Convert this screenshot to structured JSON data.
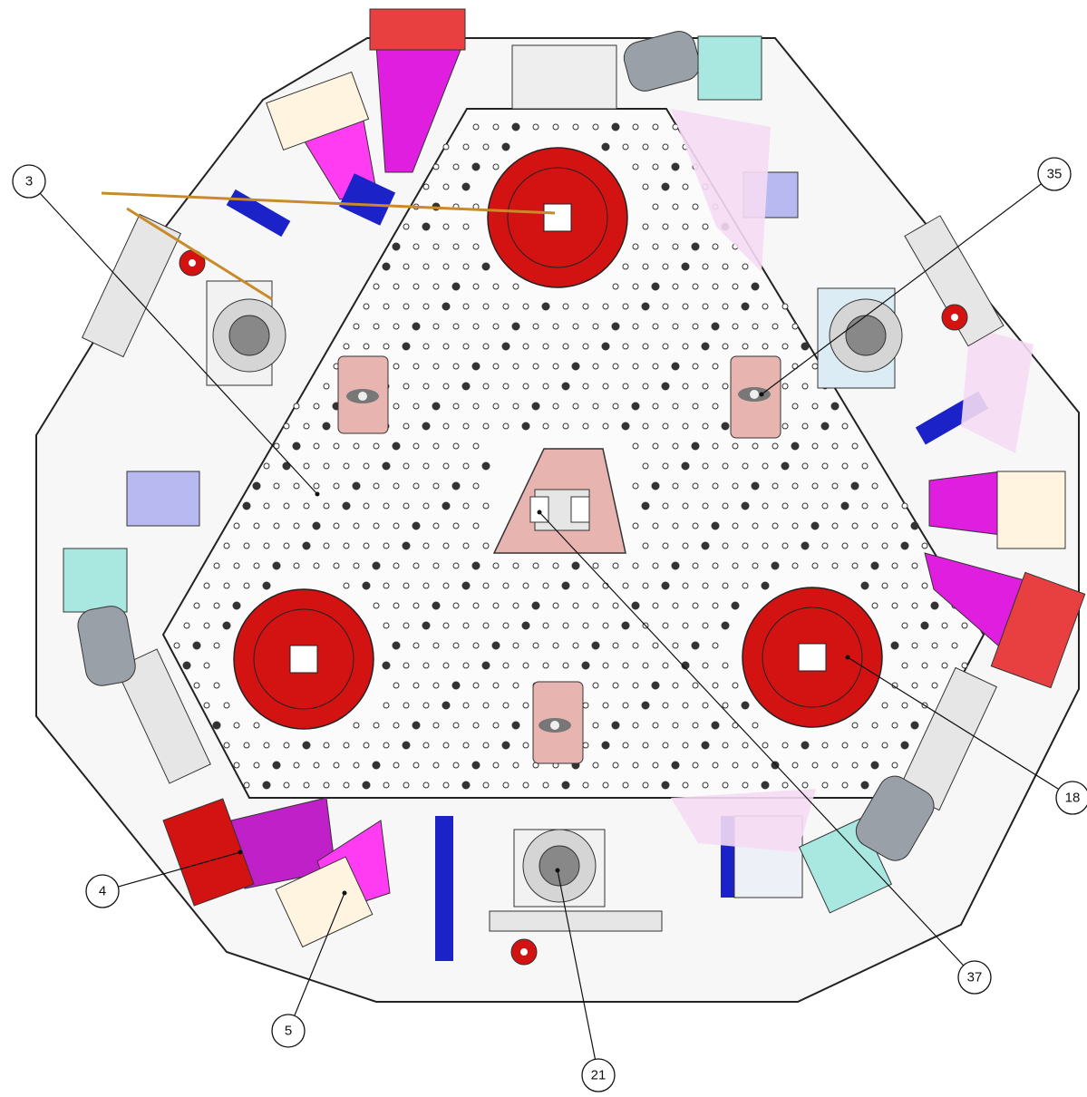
{
  "colors": {
    "plate": "#f4f4f4",
    "outline": "#222222",
    "mount_red": "#d31212",
    "wedge_magenta": "#e01ee0",
    "wedge_pink": "#ff3cf2",
    "bracket_blue": "#1a22c8",
    "pad_pink": "#e8b4b0",
    "lavender": "#b7b9f0",
    "light_pink": "#f5dcf3",
    "pale_cyan": "#a8e8e0",
    "steel": "#9aa0a8",
    "hole_fill": "#ffffff"
  },
  "callouts": [
    {
      "id": "3",
      "label": "3"
    },
    {
      "id": "35",
      "label": "35"
    },
    {
      "id": "18",
      "label": "18"
    },
    {
      "id": "37",
      "label": "37"
    },
    {
      "id": "21",
      "label": "21"
    },
    {
      "id": "5",
      "label": "5"
    },
    {
      "id": "4",
      "label": "4"
    }
  ]
}
